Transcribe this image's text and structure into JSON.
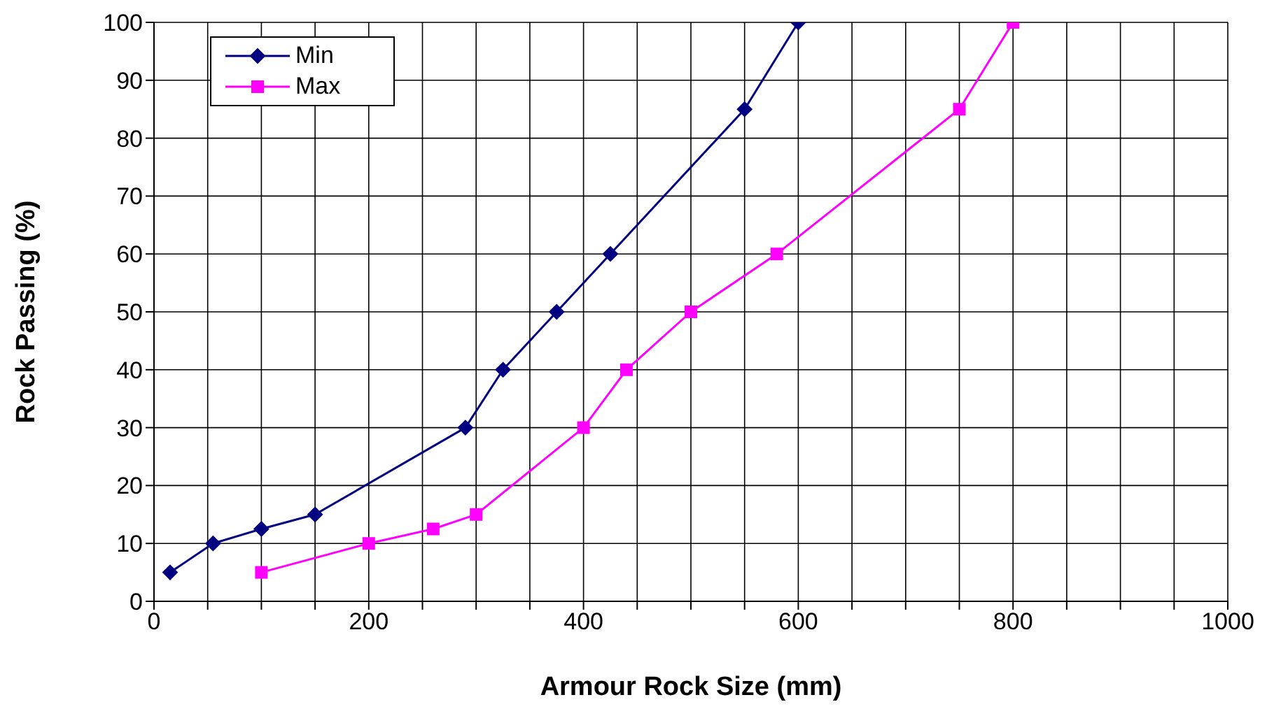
{
  "chart_data": {
    "type": "line",
    "xlabel": "Armour Rock Size (mm)",
    "ylabel": "Rock Passing (%)",
    "xlim": [
      0,
      1000
    ],
    "xticks": [
      0,
      {
        "value": 50,
        "label": null
      },
      {
        "value": 100,
        "label": null
      },
      {
        "value": 150,
        "label": null
      },
      200,
      {
        "value": 250,
        "label": null
      },
      {
        "value": 300,
        "label": null
      },
      {
        "value": 350,
        "label": null
      },
      400,
      {
        "value": 450,
        "label": null
      },
      {
        "value": 500,
        "label": null
      },
      {
        "value": 550,
        "label": null
      },
      600,
      {
        "value": 650,
        "label": null
      },
      {
        "value": 700,
        "label": null
      },
      {
        "value": 750,
        "label": null
      },
      800,
      {
        "value": 850,
        "label": null
      },
      {
        "value": 900,
        "label": null
      },
      {
        "value": 950,
        "label": null
      },
      1000
    ],
    "ylim": [
      0,
      100
    ],
    "yticks": [
      0,
      10,
      20,
      30,
      40,
      50,
      60,
      70,
      80,
      90,
      100
    ],
    "grid": true,
    "legend": "top left",
    "line_style": "solid",
    "series": [
      {
        "name": "Min",
        "color": "#000080",
        "marker": "diamond",
        "x": [
          15,
          55,
          100,
          150,
          290,
          325,
          375,
          425,
          550,
          600
        ],
        "values": [
          5,
          10,
          12.5,
          15,
          30,
          40,
          50,
          60,
          85,
          100
        ]
      },
      {
        "name": "Max",
        "color": "#ff00ff",
        "marker": "square",
        "x": [
          100,
          200,
          260,
          300,
          400,
          440,
          500,
          580,
          750,
          800
        ],
        "values": [
          5,
          10,
          12.5,
          15,
          30,
          40,
          50,
          60,
          85,
          100
        ]
      }
    ]
  }
}
